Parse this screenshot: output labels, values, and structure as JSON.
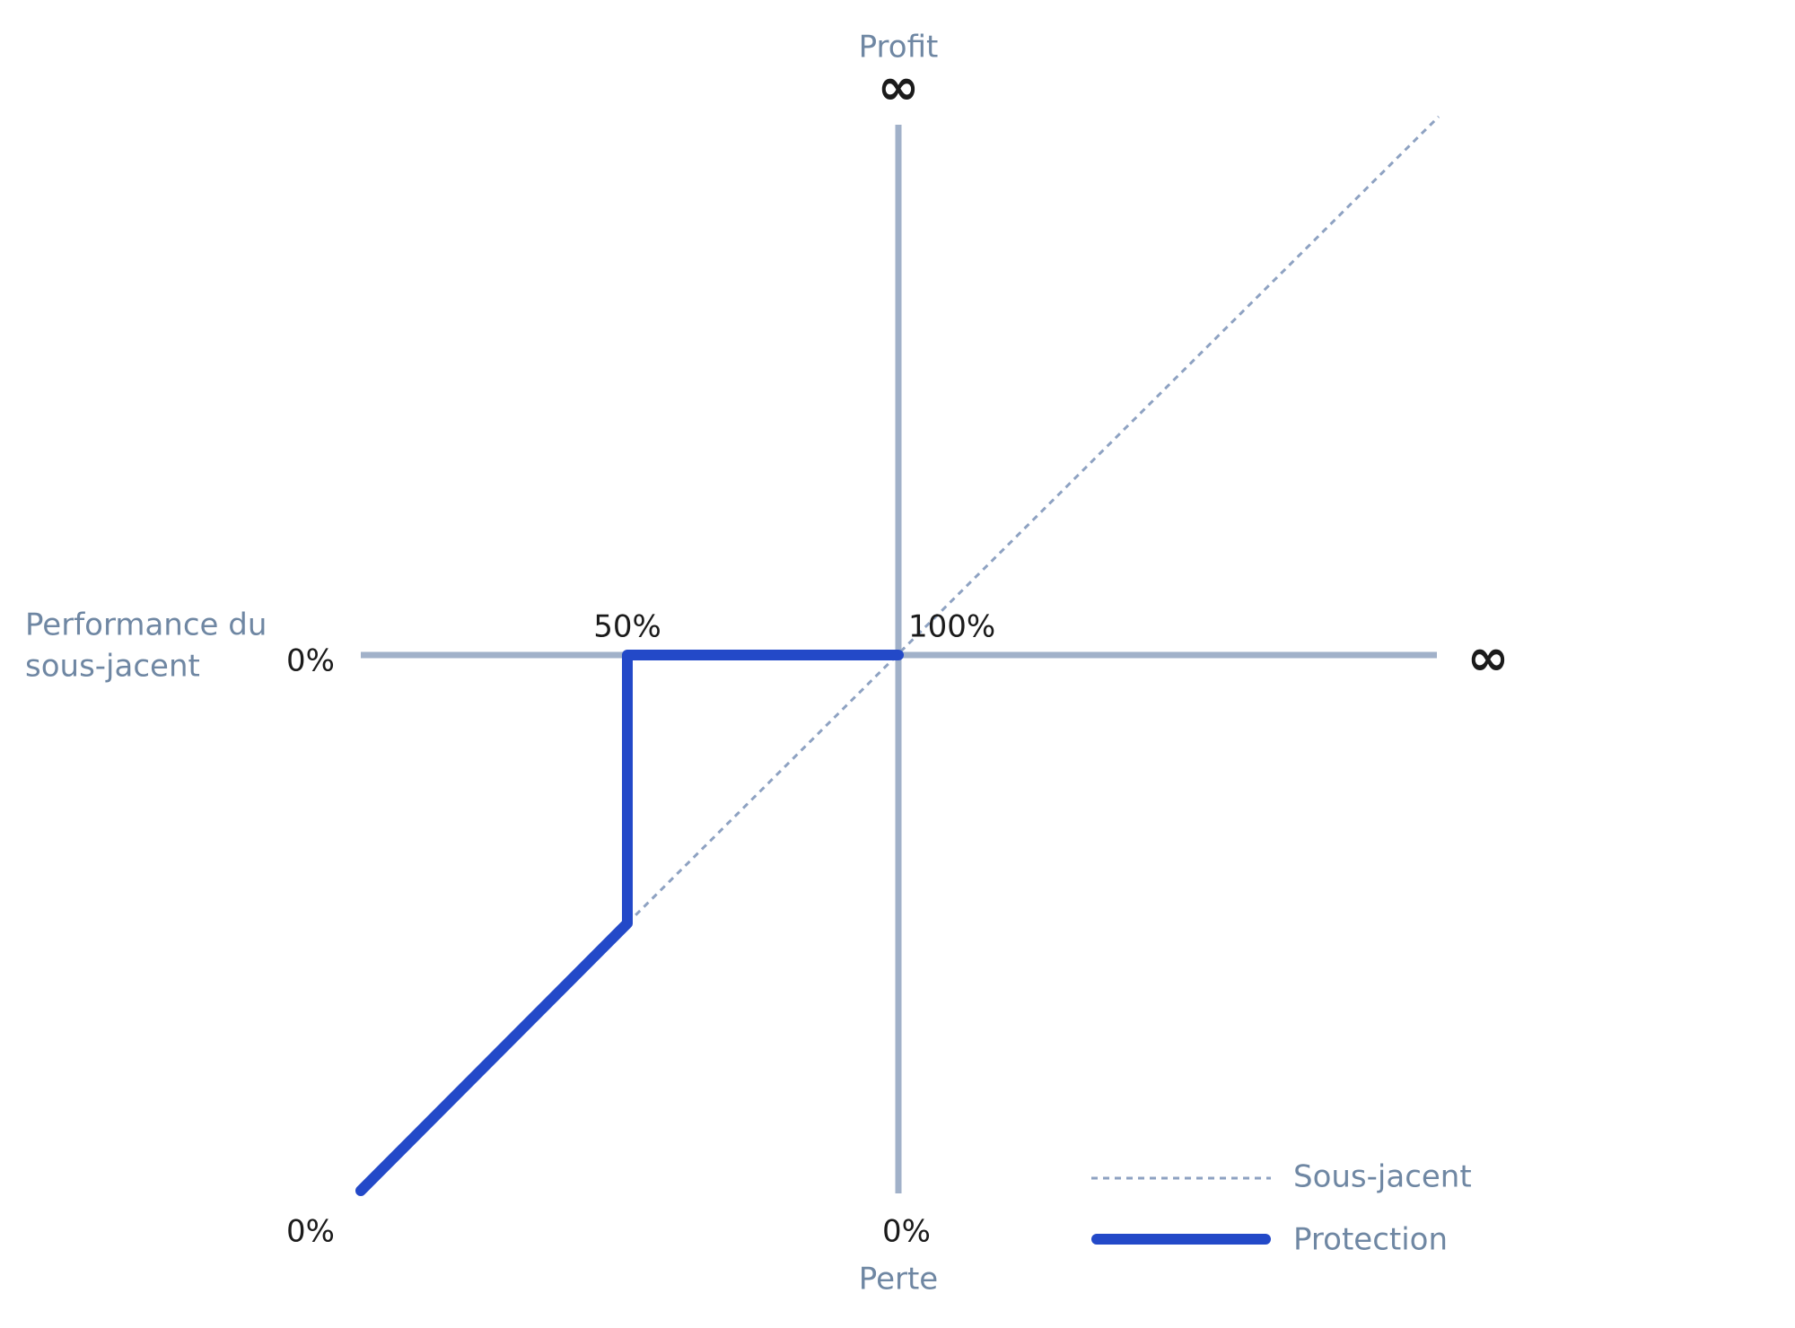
{
  "axes": {
    "y_title_top": "Profit",
    "y_top": "∞",
    "y_title_bottom": "Perte",
    "x_title": [
      "Performance du",
      "sous-jacent"
    ],
    "x_right": "∞",
    "labels": {
      "origin_left": "0%",
      "mid": "50%",
      "center": "100%",
      "bottom_left": "0%",
      "bottom_center": "0%"
    }
  },
  "legend": [
    {
      "label": "Sous-jacent"
    },
    {
      "label": "Protection"
    }
  ]
}
